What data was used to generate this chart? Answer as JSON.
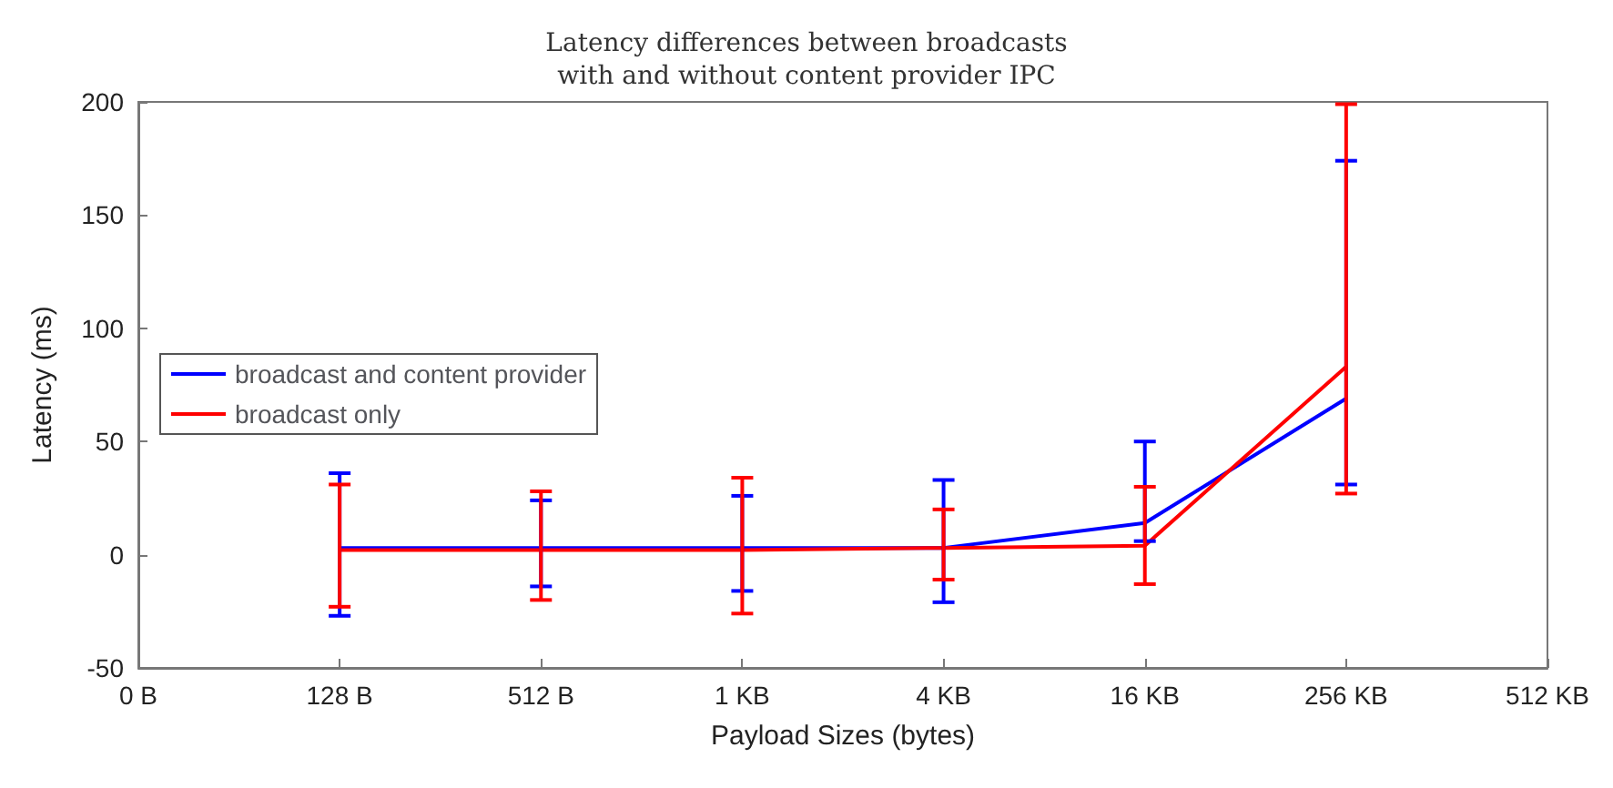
{
  "chart_data": {
    "type": "line",
    "title": "Latency differences between broadcasts\nwith and without content provider IPC",
    "xlabel": "Payload Sizes (bytes)",
    "ylabel": "Latency (ms)",
    "categories": [
      "0 B",
      "128 B",
      "512 B",
      "1 KB",
      "4 KB",
      "16 KB",
      "256 KB",
      "512 KB"
    ],
    "series": [
      {
        "name": "broadcast and content provider",
        "color": "#0000ff",
        "values": [
          null,
          3,
          3,
          3,
          3,
          14,
          69,
          null
        ],
        "errors": [
          null,
          [
            -27,
            36
          ],
          [
            -14,
            24
          ],
          [
            -16,
            26
          ],
          [
            -21,
            33
          ],
          [
            6,
            50
          ],
          [
            31,
            174
          ],
          null
        ]
      },
      {
        "name": "broadcast only",
        "color": "#ff0000",
        "values": [
          null,
          2,
          2,
          2,
          3,
          4,
          83,
          null
        ],
        "errors": [
          null,
          [
            -23,
            31
          ],
          [
            -20,
            28
          ],
          [
            -26,
            34
          ],
          [
            -11,
            20
          ],
          [
            -13,
            30
          ],
          [
            27,
            199
          ],
          null
        ]
      }
    ],
    "ylim": [
      -50,
      200
    ],
    "yticks": [
      -50,
      0,
      50,
      100,
      150,
      200
    ],
    "grid": false,
    "legend": "left",
    "marker": "none",
    "line_style": "solid"
  }
}
